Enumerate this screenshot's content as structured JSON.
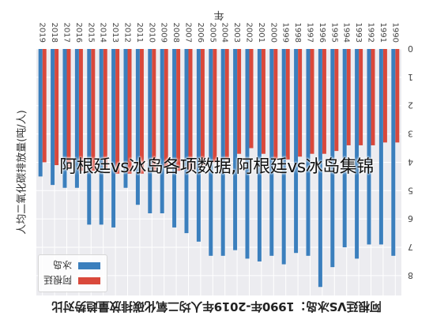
{
  "overlay_caption": "阿根廷vs冰岛各项数据,阿根廷vs冰岛集锦",
  "chart_data": {
    "type": "bar",
    "title": "阿根廷VS冰岛：1990年-2019年人均二氧化碳排放量趋势对比",
    "xlabel": "年",
    "ylabel": "人均二氧化碳排放量(吨/人)",
    "ylim": [
      0,
      8.7
    ],
    "yticks": [
      0,
      1,
      2,
      3,
      4,
      5,
      6,
      7,
      8
    ],
    "grid": true,
    "legend_position": "top-left",
    "rendered_rotated_180": true,
    "categories": [
      "1990",
      "1991",
      "1992",
      "1993",
      "1994",
      "1995",
      "1996",
      "1997",
      "1998",
      "1999",
      "2000",
      "2001",
      "2002",
      "2003",
      "2004",
      "2005",
      "2006",
      "2007",
      "2008",
      "2009",
      "2010",
      "2011",
      "2012",
      "2013",
      "2014",
      "2015",
      "2016",
      "2017",
      "2018",
      "2019"
    ],
    "series": [
      {
        "name": "阿根廷",
        "color": "#d9483b",
        "values": [
          3.3,
          3.3,
          3.4,
          3.4,
          3.4,
          3.6,
          3.7,
          3.7,
          3.8,
          3.9,
          3.9,
          3.7,
          3.5,
          3.7,
          3.9,
          4.0,
          4.1,
          4.3,
          4.3,
          4.2,
          4.3,
          4.4,
          4.4,
          4.4,
          4.2,
          4.3,
          4.3,
          4.2,
          4.1,
          4.0
        ]
      },
      {
        "name": "冰岛",
        "color": "#3b7fbd",
        "values": [
          7.3,
          6.9,
          6.9,
          7.4,
          7.0,
          7.7,
          8.4,
          7.3,
          7.2,
          7.6,
          7.3,
          7.5,
          7.4,
          7.1,
          7.3,
          7.3,
          6.8,
          6.5,
          6.3,
          5.8,
          5.8,
          5.5,
          4.9,
          6.3,
          6.2,
          6.2,
          4.9,
          4.9,
          4.8,
          4.5
        ]
      }
    ]
  }
}
